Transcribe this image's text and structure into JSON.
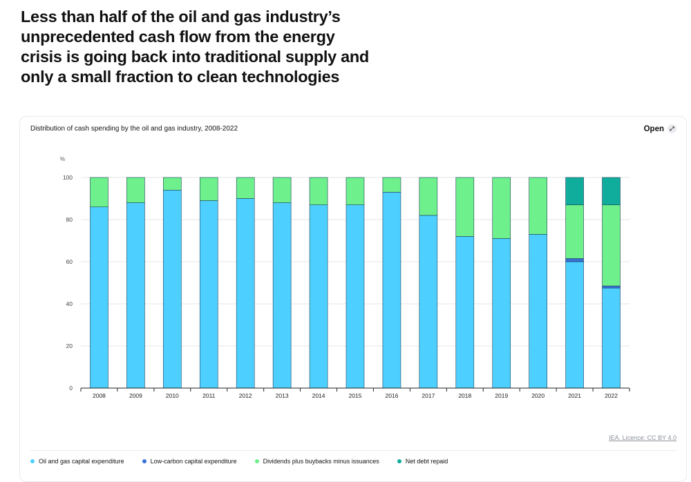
{
  "headline": "Less than half of the oil and gas industry’s unprecedented cash flow from the energy crisis is going back into traditional supply and only a small fraction to clean technologies",
  "card": {
    "title": "Distribution of cash spending by the oil and gas industry, 2008-2022",
    "open_label": "Open",
    "licence": "IEA. Licence: CC BY 4.0"
  },
  "colors": {
    "oil_gas_capex": "#4dd0ff",
    "low_carbon_capex": "#3a6fd8",
    "dividends": "#6ef08c",
    "net_debt": "#11ad9c"
  },
  "chart_data": {
    "type": "bar",
    "stacked": true,
    "title": "Distribution of cash spending by the oil and gas industry, 2008-2022",
    "xlabel": "",
    "ylabel": "%",
    "ylim": [
      0,
      100
    ],
    "yticks": [
      0,
      20,
      40,
      60,
      80,
      100
    ],
    "categories": [
      "2008",
      "2009",
      "2010",
      "2011",
      "2012",
      "2013",
      "2014",
      "2015",
      "2016",
      "2017",
      "2018",
      "2019",
      "2020",
      "2021",
      "2022"
    ],
    "series": [
      {
        "name": "Oil and gas capital expenditure",
        "color_key": "oil_gas_capex",
        "values": [
          86,
          88,
          94,
          89,
          90,
          88,
          87,
          87,
          93,
          82,
          72,
          71,
          73,
          60,
          47.5
        ]
      },
      {
        "name": "Low-carbon capital expenditure",
        "color_key": "low_carbon_capex",
        "values": [
          0,
          0,
          0,
          0,
          0,
          0,
          0,
          0,
          0,
          0,
          0,
          0,
          0,
          1.5,
          1
        ]
      },
      {
        "name": "Dividends plus buybacks minus issuances",
        "color_key": "dividends",
        "values": [
          14,
          12,
          6,
          11,
          10,
          12,
          13,
          13,
          7,
          18,
          28,
          29,
          27,
          25.5,
          38.5
        ]
      },
      {
        "name": "Net debt repaid",
        "color_key": "net_debt",
        "values": [
          0,
          0,
          0,
          0,
          0,
          0,
          0,
          0,
          0,
          0,
          0,
          0,
          0,
          13,
          13
        ]
      }
    ],
    "legend_position": "bottom"
  }
}
